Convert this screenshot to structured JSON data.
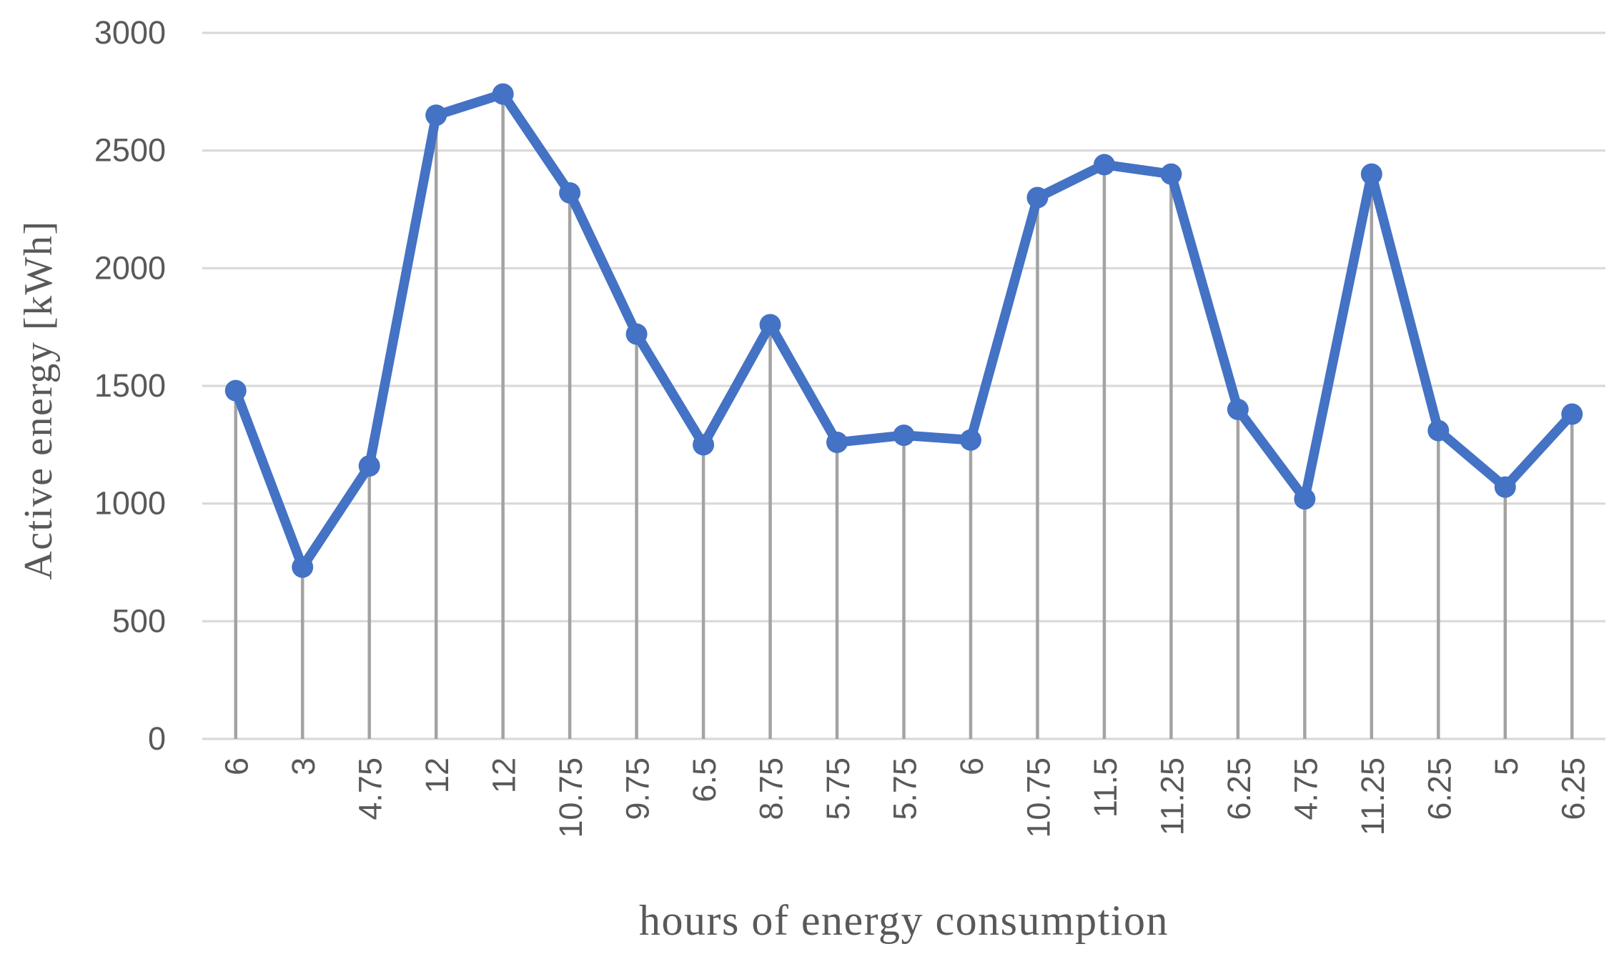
{
  "chart_data": {
    "type": "line",
    "title": "",
    "xlabel": "hours of energy consumption",
    "ylabel": "Active energy [kWh]",
    "categories": [
      "6",
      "3",
      "4.75",
      "12",
      "12",
      "10.75",
      "9.75",
      "6.5",
      "8.75",
      "5.75",
      "5.75",
      "6",
      "10.75",
      "11.5",
      "11.25",
      "6.25",
      "4.75",
      "11.25",
      "6.25",
      "5",
      "6.25"
    ],
    "values": [
      1480,
      730,
      1160,
      2650,
      2740,
      2320,
      1720,
      1250,
      1760,
      1260,
      1290,
      1270,
      2300,
      2440,
      2400,
      1400,
      1020,
      2400,
      1310,
      1070,
      1380
    ],
    "ylim": [
      0,
      3000
    ],
    "yticks": [
      0,
      500,
      1000,
      1500,
      2000,
      2500,
      3000
    ],
    "x_tick_rotation": 90,
    "grid": "horizontal",
    "drop_lines": true,
    "legend_position": "none",
    "marker": "circle",
    "colors": {
      "series": "#4472C4",
      "gridline": "#D9D9D9",
      "drop_line": "#A3A3A3",
      "tick_text": "#595959",
      "title_text": "#595959"
    }
  }
}
